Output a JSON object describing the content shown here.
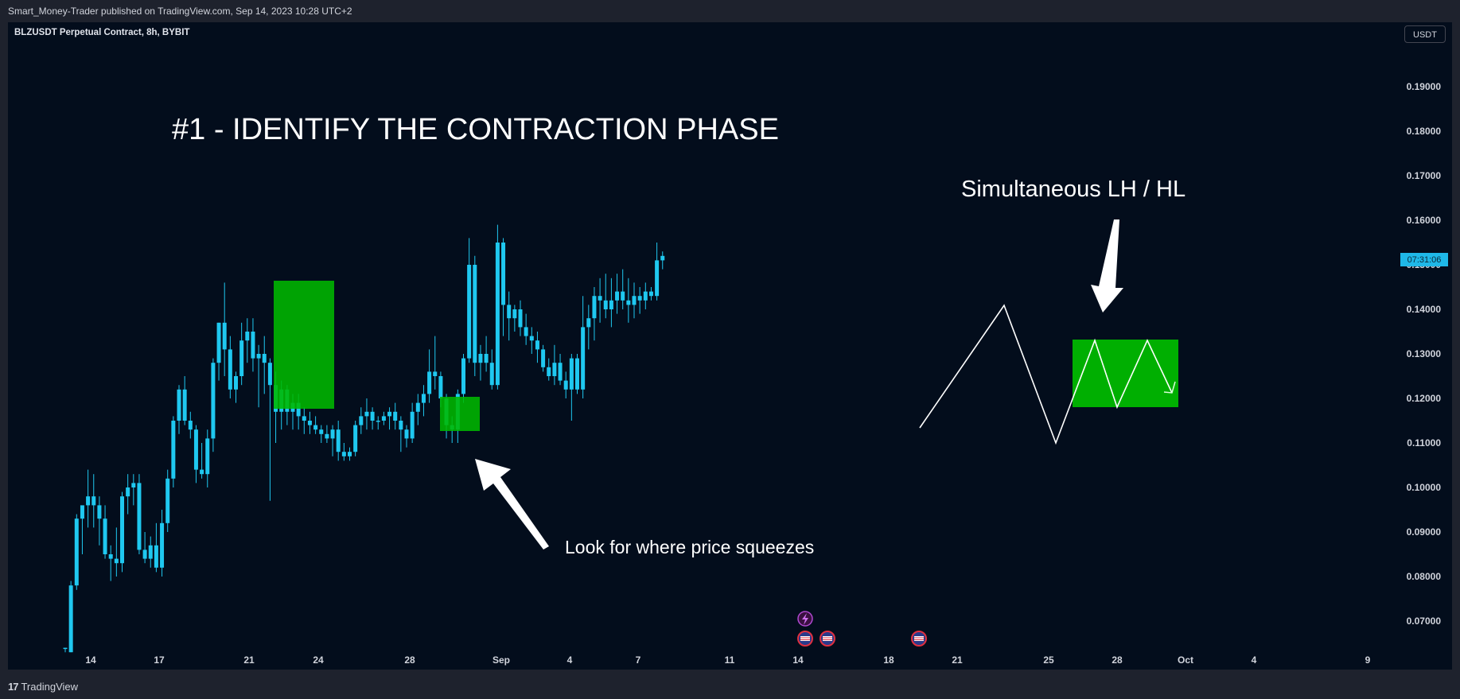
{
  "header": {
    "published": "Smart_Money-Trader published on TradingView.com, Sep 14, 2023 10:28 UTC+2"
  },
  "symbol_title": "BLZUSDT Perpetual Contract, 8h, BYBIT",
  "currency": "USDT",
  "footer": {
    "brand": "TradingView",
    "logo_glyph": "17"
  },
  "annotations": {
    "headline": "#1 - IDENTIFY THE CONTRACTION PHASE",
    "squeeze_note": "Look for where price squeezes",
    "pattern_note": "Simultaneous LH / HL",
    "countdown": "07:31:06"
  },
  "colors": {
    "background": "#030d1c",
    "candle": "#1fc8f0",
    "highlight": "#00b800",
    "drawing": "#ffffff",
    "price_label_bg": "#1fb8e8"
  },
  "chart_data": {
    "type": "candlestick",
    "symbol": "BLZUSDT",
    "interval": "8h",
    "exchange": "BYBIT",
    "ylim": [
      0.0625,
      0.2
    ],
    "y_ticks": [
      "0.07000",
      "0.08000",
      "0.09000",
      "0.10000",
      "0.11000",
      "0.12000",
      "0.13000",
      "0.14000",
      "0.15000",
      "0.16000",
      "0.17000",
      "0.18000",
      "0.19000"
    ],
    "x_ticks": [
      "14",
      "17",
      "21",
      "24",
      "28",
      "Sep",
      "4",
      "7",
      "11",
      "14",
      "18",
      "21",
      "25",
      "28",
      "Oct",
      "4",
      "9"
    ],
    "last_price": 0.1503,
    "ohlc": [
      [
        0.064,
        0.064,
        0.063,
        0.064
      ],
      [
        0.063,
        0.079,
        0.063,
        0.078
      ],
      [
        0.078,
        0.094,
        0.077,
        0.093
      ],
      [
        0.093,
        0.095,
        0.085,
        0.096
      ],
      [
        0.096,
        0.104,
        0.091,
        0.098
      ],
      [
        0.098,
        0.103,
        0.091,
        0.096
      ],
      [
        0.096,
        0.098,
        0.087,
        0.093
      ],
      [
        0.093,
        0.096,
        0.084,
        0.085
      ],
      [
        0.085,
        0.087,
        0.079,
        0.084
      ],
      [
        0.084,
        0.091,
        0.08,
        0.083
      ],
      [
        0.083,
        0.099,
        0.081,
        0.098
      ],
      [
        0.098,
        0.103,
        0.094,
        0.1
      ],
      [
        0.1,
        0.103,
        0.096,
        0.101
      ],
      [
        0.101,
        0.103,
        0.085,
        0.086
      ],
      [
        0.086,
        0.09,
        0.083,
        0.084
      ],
      [
        0.084,
        0.089,
        0.082,
        0.087
      ],
      [
        0.087,
        0.092,
        0.081,
        0.082
      ],
      [
        0.082,
        0.095,
        0.08,
        0.092
      ],
      [
        0.092,
        0.104,
        0.09,
        0.102
      ],
      [
        0.102,
        0.116,
        0.1,
        0.115
      ],
      [
        0.115,
        0.123,
        0.112,
        0.122
      ],
      [
        0.122,
        0.125,
        0.114,
        0.115
      ],
      [
        0.115,
        0.117,
        0.111,
        0.113
      ],
      [
        0.113,
        0.114,
        0.101,
        0.104
      ],
      [
        0.104,
        0.11,
        0.102,
        0.103
      ],
      [
        0.103,
        0.113,
        0.1,
        0.111
      ],
      [
        0.111,
        0.129,
        0.108,
        0.128
      ],
      [
        0.128,
        0.137,
        0.124,
        0.137
      ],
      [
        0.137,
        0.146,
        0.125,
        0.131
      ],
      [
        0.131,
        0.134,
        0.12,
        0.122
      ],
      [
        0.122,
        0.126,
        0.119,
        0.125
      ],
      [
        0.125,
        0.137,
        0.123,
        0.133
      ],
      [
        0.133,
        0.138,
        0.128,
        0.135
      ],
      [
        0.135,
        0.138,
        0.126,
        0.129
      ],
      [
        0.129,
        0.132,
        0.118,
        0.13
      ],
      [
        0.13,
        0.134,
        0.121,
        0.128
      ],
      [
        0.128,
        0.129,
        0.097,
        0.123
      ],
      [
        0.123,
        0.126,
        0.11,
        0.117
      ],
      [
        0.117,
        0.124,
        0.113,
        0.122
      ],
      [
        0.122,
        0.123,
        0.114,
        0.117
      ],
      [
        0.117,
        0.121,
        0.113,
        0.119
      ],
      [
        0.119,
        0.121,
        0.113,
        0.116
      ],
      [
        0.116,
        0.118,
        0.112,
        0.115
      ],
      [
        0.115,
        0.117,
        0.112,
        0.114
      ],
      [
        0.114,
        0.116,
        0.112,
        0.113
      ],
      [
        0.113,
        0.114,
        0.11,
        0.112
      ],
      [
        0.112,
        0.114,
        0.11,
        0.111
      ],
      [
        0.111,
        0.114,
        0.107,
        0.113
      ],
      [
        0.113,
        0.115,
        0.106,
        0.108
      ],
      [
        0.108,
        0.11,
        0.106,
        0.107
      ],
      [
        0.107,
        0.109,
        0.106,
        0.108
      ],
      [
        0.108,
        0.115,
        0.107,
        0.114
      ],
      [
        0.114,
        0.118,
        0.112,
        0.116
      ],
      [
        0.116,
        0.12,
        0.113,
        0.117
      ],
      [
        0.117,
        0.118,
        0.113,
        0.115
      ],
      [
        0.115,
        0.116,
        0.113,
        0.115
      ],
      [
        0.115,
        0.117,
        0.114,
        0.116
      ],
      [
        0.116,
        0.118,
        0.113,
        0.117
      ],
      [
        0.117,
        0.119,
        0.113,
        0.115
      ],
      [
        0.115,
        0.116,
        0.108,
        0.113
      ],
      [
        0.113,
        0.114,
        0.109,
        0.111
      ],
      [
        0.111,
        0.119,
        0.11,
        0.117
      ],
      [
        0.117,
        0.121,
        0.114,
        0.119
      ],
      [
        0.119,
        0.123,
        0.116,
        0.121
      ],
      [
        0.121,
        0.131,
        0.119,
        0.126
      ],
      [
        0.126,
        0.134,
        0.122,
        0.125
      ],
      [
        0.125,
        0.126,
        0.118,
        0.12
      ],
      [
        0.12,
        0.121,
        0.111,
        0.114
      ],
      [
        0.114,
        0.116,
        0.11,
        0.113
      ],
      [
        0.113,
        0.122,
        0.11,
        0.121
      ],
      [
        0.121,
        0.13,
        0.119,
        0.129
      ],
      [
        0.129,
        0.156,
        0.128,
        0.15
      ],
      [
        0.15,
        0.152,
        0.125,
        0.128
      ],
      [
        0.128,
        0.132,
        0.124,
        0.13
      ],
      [
        0.13,
        0.134,
        0.126,
        0.128
      ],
      [
        0.128,
        0.131,
        0.122,
        0.123
      ],
      [
        0.123,
        0.159,
        0.122,
        0.155
      ],
      [
        0.155,
        0.156,
        0.134,
        0.141
      ],
      [
        0.141,
        0.144,
        0.133,
        0.138
      ],
      [
        0.138,
        0.141,
        0.135,
        0.14
      ],
      [
        0.14,
        0.142,
        0.134,
        0.136
      ],
      [
        0.136,
        0.139,
        0.132,
        0.134
      ],
      [
        0.134,
        0.136,
        0.13,
        0.133
      ],
      [
        0.133,
        0.135,
        0.128,
        0.131
      ],
      [
        0.131,
        0.132,
        0.126,
        0.127
      ],
      [
        0.127,
        0.129,
        0.124,
        0.125
      ],
      [
        0.125,
        0.132,
        0.123,
        0.128
      ],
      [
        0.128,
        0.13,
        0.123,
        0.124
      ],
      [
        0.124,
        0.126,
        0.12,
        0.122
      ],
      [
        0.122,
        0.13,
        0.115,
        0.129
      ],
      [
        0.129,
        0.13,
        0.121,
        0.122
      ],
      [
        0.122,
        0.143,
        0.12,
        0.136
      ],
      [
        0.136,
        0.141,
        0.131,
        0.138
      ],
      [
        0.138,
        0.145,
        0.133,
        0.143
      ],
      [
        0.143,
        0.147,
        0.137,
        0.142
      ],
      [
        0.142,
        0.148,
        0.138,
        0.14
      ],
      [
        0.14,
        0.147,
        0.136,
        0.142
      ],
      [
        0.142,
        0.148,
        0.139,
        0.144
      ],
      [
        0.144,
        0.149,
        0.14,
        0.142
      ],
      [
        0.142,
        0.147,
        0.137,
        0.141
      ],
      [
        0.141,
        0.146,
        0.138,
        0.143
      ],
      [
        0.143,
        0.145,
        0.139,
        0.142
      ],
      [
        0.142,
        0.146,
        0.14,
        0.144
      ],
      [
        0.144,
        0.145,
        0.142,
        0.143
      ],
      [
        0.143,
        0.155,
        0.142,
        0.151
      ],
      [
        0.151,
        0.153,
        0.149,
        0.152
      ]
    ]
  }
}
